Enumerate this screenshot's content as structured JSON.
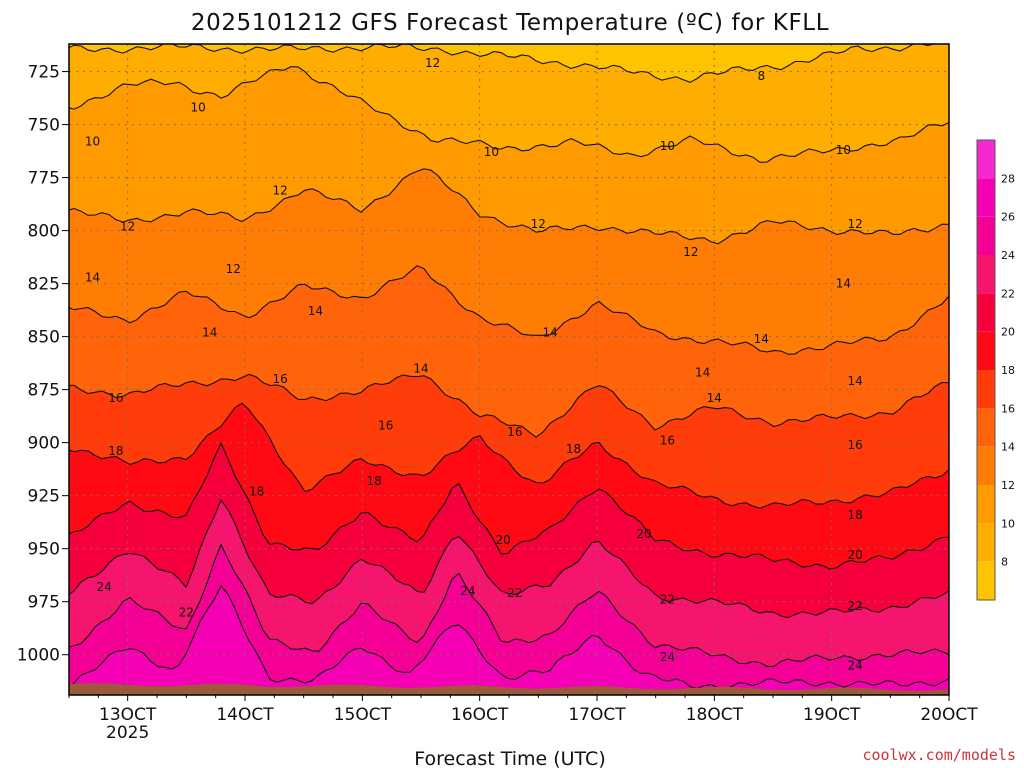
{
  "chart_data": {
    "type": "heatmap",
    "title": "2025101212 GFS Forecast Temperature (ºC) for KFLL",
    "xlabel": "Forecast Time (UTC)",
    "ylabel": "",
    "credit": "coolwx.com/models",
    "x_ticks": [
      {
        "day": 13,
        "label": "13OCT",
        "sub": "2025"
      },
      {
        "day": 14,
        "label": "14OCT",
        "sub": ""
      },
      {
        "day": 15,
        "label": "15OCT",
        "sub": ""
      },
      {
        "day": 16,
        "label": "16OCT",
        "sub": ""
      },
      {
        "day": 17,
        "label": "17OCT",
        "sub": ""
      },
      {
        "day": 18,
        "label": "18OCT",
        "sub": ""
      },
      {
        "day": 19,
        "label": "19OCT",
        "sub": ""
      },
      {
        "day": 20,
        "label": "20OCT",
        "sub": ""
      }
    ],
    "xlim_day": [
      12.5,
      20.0
    ],
    "y_ticks": [
      725,
      750,
      775,
      800,
      825,
      850,
      875,
      900,
      925,
      950,
      975,
      1000
    ],
    "ylim_hpa": [
      712,
      1019
    ],
    "ground_hpa": 1014,
    "ground_color": "#9c5a3c",
    "colorbar": {
      "ticks": [
        8,
        10,
        12,
        14,
        16,
        18,
        20,
        22,
        24,
        26,
        28
      ],
      "bands": [
        {
          "lo": 6,
          "hi": 8,
          "color": "#ffc400"
        },
        {
          "lo": 8,
          "hi": 10,
          "color": "#ffad00"
        },
        {
          "lo": 10,
          "hi": 12,
          "color": "#ff9a00"
        },
        {
          "lo": 12,
          "hi": 14,
          "color": "#ff7d05"
        },
        {
          "lo": 14,
          "hi": 16,
          "color": "#ff640a"
        },
        {
          "lo": 16,
          "hi": 18,
          "color": "#ff3c0a"
        },
        {
          "lo": 18,
          "hi": 20,
          "color": "#ff0a14"
        },
        {
          "lo": 20,
          "hi": 22,
          "color": "#f5003c"
        },
        {
          "lo": 22,
          "hi": 24,
          "color": "#f5146e"
        },
        {
          "lo": 24,
          "hi": 26,
          "color": "#f50096"
        },
        {
          "lo": 26,
          "hi": 28,
          "color": "#f500b4"
        },
        {
          "lo": 28,
          "hi": 30,
          "color": "#f528d2"
        }
      ]
    },
    "isotherms": [
      {
        "value": 8,
        "days": [
          15.7,
          16.8,
          17.8,
          18.6,
          19.2,
          20.0
        ],
        "hpa": [
          714,
          722,
          728,
          722,
          714,
          712
        ]
      },
      {
        "value": 10,
        "days": [
          12.5,
          13.0,
          13.4,
          13.8,
          14.4,
          15.0,
          15.6,
          16.2,
          16.8,
          17.3,
          17.8,
          18.4,
          19.0,
          19.6,
          20.0
        ],
        "hpa": [
          742,
          732,
          730,
          736,
          722,
          740,
          756,
          762,
          758,
          764,
          758,
          766,
          762,
          758,
          748
        ]
      },
      {
        "value": 12,
        "days": [
          12.5,
          13.0,
          13.5,
          14.0,
          14.5,
          15.0,
          15.5,
          16.0,
          16.5,
          17.0,
          17.5,
          18.0,
          18.5,
          19.0,
          19.5,
          20.0
        ],
        "hpa": [
          790,
          796,
          790,
          796,
          780,
          790,
          770,
          792,
          800,
          798,
          802,
          804,
          796,
          800,
          802,
          796
        ]
      },
      {
        "value": 14,
        "days": [
          12.5,
          13.0,
          13.5,
          14.0,
          14.5,
          15.0,
          15.5,
          16.0,
          16.5,
          17.0,
          17.5,
          18.0,
          18.5,
          19.0,
          19.5,
          20.0
        ],
        "hpa": [
          836,
          842,
          830,
          840,
          826,
          832,
          818,
          840,
          852,
          834,
          848,
          852,
          858,
          854,
          850,
          832
        ]
      },
      {
        "value": 16,
        "days": [
          12.5,
          13.0,
          13.5,
          14.0,
          14.5,
          15.0,
          15.5,
          16.0,
          16.5,
          17.0,
          17.5,
          18.0,
          18.5,
          19.0,
          19.5,
          20.0
        ],
        "hpa": [
          874,
          878,
          872,
          868,
          880,
          876,
          866,
          888,
          896,
          872,
          892,
          884,
          890,
          888,
          886,
          872
        ]
      },
      {
        "value": 18,
        "days": [
          12.5,
          13.0,
          13.5,
          14.0,
          14.5,
          15.0,
          15.5,
          16.0,
          16.5,
          17.0,
          17.5,
          18.0,
          18.5,
          19.0,
          19.5,
          20.0
        ],
        "hpa": [
          902,
          910,
          906,
          882,
          922,
          908,
          916,
          898,
          920,
          900,
          920,
          926,
          930,
          928,
          924,
          912
        ]
      },
      {
        "value": 20,
        "days": [
          12.5,
          13.0,
          13.5,
          13.8,
          14.2,
          14.6,
          15.0,
          15.5,
          15.8,
          16.2,
          16.6,
          17.0,
          17.5,
          18.0,
          18.5,
          19.0,
          19.5,
          20.0
        ],
        "hpa": [
          944,
          928,
          936,
          902,
          946,
          952,
          932,
          948,
          918,
          952,
          942,
          920,
          946,
          952,
          956,
          958,
          954,
          944
        ]
      },
      {
        "value": 22,
        "days": [
          12.5,
          13.0,
          13.5,
          13.8,
          14.2,
          14.6,
          15.0,
          15.5,
          15.8,
          16.2,
          16.6,
          17.0,
          17.5,
          18.0,
          18.5,
          19.0,
          19.5,
          20.0
        ],
        "hpa": [
          972,
          950,
          968,
          924,
          972,
          976,
          954,
          972,
          940,
          974,
          966,
          946,
          972,
          976,
          980,
          980,
          978,
          972
        ]
      },
      {
        "value": 24,
        "days": [
          12.5,
          13.0,
          13.5,
          13.8,
          14.2,
          14.6,
          15.0,
          15.5,
          15.8,
          16.2,
          16.6,
          17.0,
          17.5,
          18.0,
          18.5,
          19.0,
          19.5,
          20.0
        ],
        "hpa": [
          998,
          974,
          988,
          948,
          994,
          998,
          976,
          994,
          962,
          994,
          990,
          970,
          996,
          1000,
          1004,
          1002,
          1000,
          998
        ]
      },
      {
        "value": 26,
        "days": [
          12.5,
          13.0,
          13.4,
          13.8,
          14.2,
          14.6,
          15.0,
          15.4,
          15.8,
          16.2,
          16.6,
          17.0,
          17.4,
          17.8,
          18.4,
          19.0,
          19.6,
          20.0
        ],
        "hpa": [
          1014,
          996,
          1008,
          968,
          1010,
          1012,
          996,
          1010,
          984,
          1010,
          1008,
          990,
          1010,
          1014,
          1014,
          1013,
          1014,
          1012
        ]
      }
    ],
    "contour_labels": [
      {
        "text": "8",
        "day": 18.4,
        "hpa": 727
      },
      {
        "text": "10",
        "day": 13.6,
        "hpa": 742
      },
      {
        "text": "10",
        "day": 12.7,
        "hpa": 758
      },
      {
        "text": "10",
        "day": 16.1,
        "hpa": 763
      },
      {
        "text": "10",
        "day": 17.6,
        "hpa": 760
      },
      {
        "text": "10",
        "day": 19.1,
        "hpa": 762
      },
      {
        "text": "12",
        "day": 15.6,
        "hpa": 721
      },
      {
        "text": "12",
        "day": 14.3,
        "hpa": 781
      },
      {
        "text": "12",
        "day": 13.0,
        "hpa": 798
      },
      {
        "text": "12",
        "day": 13.9,
        "hpa": 818
      },
      {
        "text": "12",
        "day": 16.5,
        "hpa": 797
      },
      {
        "text": "12",
        "day": 17.8,
        "hpa": 810
      },
      {
        "text": "12",
        "day": 19.2,
        "hpa": 797
      },
      {
        "text": "14",
        "day": 12.7,
        "hpa": 822
      },
      {
        "text": "14",
        "day": 13.7,
        "hpa": 848
      },
      {
        "text": "14",
        "day": 14.6,
        "hpa": 838
      },
      {
        "text": "14",
        "day": 15.5,
        "hpa": 865
      },
      {
        "text": "14",
        "day": 16.6,
        "hpa": 848
      },
      {
        "text": "14",
        "day": 17.9,
        "hpa": 867
      },
      {
        "text": "14",
        "day": 18.4,
        "hpa": 851
      },
      {
        "text": "14",
        "day": 19.1,
        "hpa": 825
      },
      {
        "text": "14",
        "day": 18.0,
        "hpa": 879
      },
      {
        "text": "14",
        "day": 19.2,
        "hpa": 871
      },
      {
        "text": "16",
        "day": 12.9,
        "hpa": 879
      },
      {
        "text": "16",
        "day": 14.3,
        "hpa": 870
      },
      {
        "text": "16",
        "day": 15.2,
        "hpa": 892
      },
      {
        "text": "16",
        "day": 16.3,
        "hpa": 895
      },
      {
        "text": "16",
        "day": 17.6,
        "hpa": 899
      },
      {
        "text": "16",
        "day": 19.2,
        "hpa": 901
      },
      {
        "text": "18",
        "day": 12.9,
        "hpa": 904
      },
      {
        "text": "18",
        "day": 14.1,
        "hpa": 923
      },
      {
        "text": "18",
        "day": 15.1,
        "hpa": 918
      },
      {
        "text": "18",
        "day": 16.8,
        "hpa": 903
      },
      {
        "text": "18",
        "day": 19.2,
        "hpa": 934
      },
      {
        "text": "20",
        "day": 16.2,
        "hpa": 946
      },
      {
        "text": "20",
        "day": 17.4,
        "hpa": 943
      },
      {
        "text": "20",
        "day": 19.2,
        "hpa": 953
      },
      {
        "text": "22",
        "day": 13.5,
        "hpa": 980
      },
      {
        "text": "22",
        "day": 16.3,
        "hpa": 971
      },
      {
        "text": "22",
        "day": 17.6,
        "hpa": 974
      },
      {
        "text": "22",
        "day": 19.2,
        "hpa": 977
      },
      {
        "text": "24",
        "day": 12.8,
        "hpa": 968
      },
      {
        "text": "24",
        "day": 15.9,
        "hpa": 970
      },
      {
        "text": "24",
        "day": 17.6,
        "hpa": 1001
      },
      {
        "text": "24",
        "day": 19.2,
        "hpa": 1005
      }
    ]
  }
}
